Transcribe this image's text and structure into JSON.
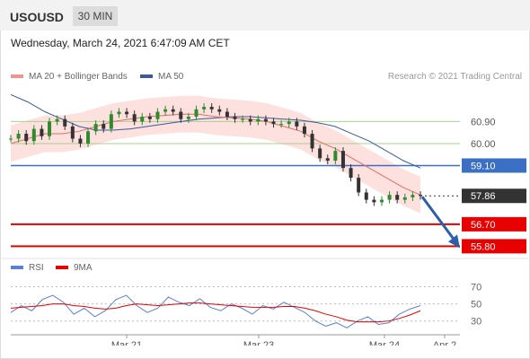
{
  "header": {
    "symbol": "USOUSD",
    "timeframe": "30 MIN"
  },
  "timestamp": "Wednesday, March 24, 2021 6:47:09 AM CET",
  "legend": {
    "items": [
      {
        "label": "MA 20 + Bollinger Bands",
        "color": "#f2938d"
      },
      {
        "label": "MA 50",
        "color": "#3a5a99"
      }
    ],
    "copyright": "Research © 2021 Trading Central"
  },
  "chart_data": [
    {
      "type": "line",
      "title": "",
      "price_levels": [
        {
          "label": "60.90",
          "value": 60.9,
          "kind": "resistance-green",
          "color": "#a8d08d"
        },
        {
          "label": "60.00",
          "value": 60.0,
          "kind": "resistance-green",
          "color": "#a8d08d"
        },
        {
          "label": "59.10",
          "value": 59.1,
          "kind": "pivot",
          "color": "#3a6fc4"
        },
        {
          "label": "57.86",
          "value": 57.86,
          "kind": "last-price",
          "color": "#333333"
        },
        {
          "label": "56.70",
          "value": 56.7,
          "kind": "support",
          "color": "#e60000"
        },
        {
          "label": "55.80",
          "value": 55.8,
          "kind": "support",
          "color": "#e60000"
        }
      ],
      "series": [
        {
          "name": "MA 20 + Bollinger Bands",
          "color": "#f2938d",
          "values": [
            60.0,
            60.2,
            60.4,
            60.4,
            60.5,
            60.7,
            60.9,
            61.0,
            61.1,
            61.15,
            61.2,
            61.2,
            61.1,
            61.05,
            61.0,
            60.9,
            60.7,
            60.5,
            60.1,
            59.8,
            59.4,
            59.0,
            58.6,
            58.2,
            57.9
          ]
        },
        {
          "name": "MA 50",
          "color": "#3a5a99",
          "values": [
            62.0,
            61.7,
            61.3,
            61.0,
            60.7,
            60.55,
            60.55,
            60.6,
            60.7,
            60.8,
            60.9,
            61.0,
            61.05,
            61.1,
            61.1,
            61.05,
            61.0,
            60.95,
            60.85,
            60.7,
            60.4,
            60.1,
            59.7,
            59.3,
            59.0
          ]
        }
      ],
      "price": [
        60.2,
        60.4,
        60.1,
        60.6,
        60.3,
        60.9,
        61.0,
        60.7,
        60.2,
        60.0,
        60.5,
        60.8,
        60.6,
        61.2,
        61.3,
        61.2,
        60.9,
        61.1,
        61.0,
        61.3,
        61.4,
        61.3,
        61.0,
        61.1,
        61.4,
        61.5,
        61.4,
        61.3,
        61.1,
        61.0,
        61.0,
        60.9,
        61.0,
        60.9,
        60.8,
        60.8,
        60.9,
        60.7,
        60.4,
        59.8,
        59.4,
        59.3,
        59.7,
        59.0,
        58.6,
        58.0,
        57.7,
        57.6,
        57.7,
        57.9,
        57.7,
        57.8,
        57.9,
        57.86
      ],
      "forecast_target": 55.8,
      "x_ticks": [
        "Mar 21",
        "Mar 23",
        "Mar 24",
        "Apr 2"
      ],
      "ylim": [
        55.3,
        62.2
      ]
    },
    {
      "type": "line",
      "legend": [
        {
          "label": "RSI",
          "color": "#5b7fd6"
        },
        {
          "label": "9MA",
          "color": "#e60000"
        }
      ],
      "y_ticks": [
        "70",
        "50",
        "30"
      ],
      "ylim": [
        15,
        80
      ],
      "series": [
        {
          "name": "RSI",
          "color": "#5b7fd6",
          "values": [
            40,
            48,
            42,
            55,
            60,
            52,
            38,
            45,
            35,
            42,
            55,
            60,
            48,
            40,
            45,
            58,
            52,
            48,
            56,
            46,
            42,
            50,
            45,
            38,
            48,
            44,
            52,
            46,
            40,
            30,
            24,
            28,
            22,
            30,
            35,
            26,
            28,
            38,
            44,
            48
          ]
        },
        {
          "name": "9MA",
          "color": "#e60000",
          "values": [
            45,
            46,
            47,
            48,
            50,
            50,
            48,
            47,
            45,
            44,
            45,
            48,
            50,
            49,
            48,
            49,
            50,
            51,
            51,
            50,
            49,
            48,
            47,
            46,
            46,
            46,
            47,
            47,
            45,
            42,
            38,
            35,
            31,
            29,
            29,
            29,
            30,
            33,
            37,
            42
          ]
        }
      ]
    }
  ]
}
